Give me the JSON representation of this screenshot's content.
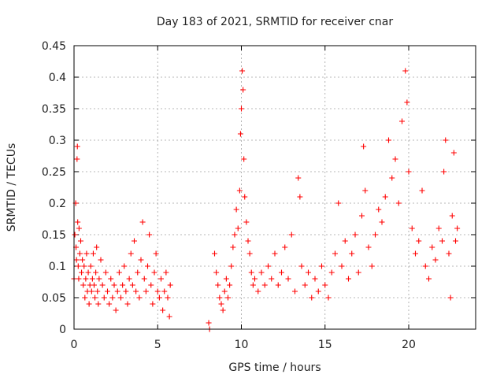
{
  "chart_data": {
    "type": "scatter",
    "title": "Day 183 of 2021, SRMTID for receiver cnar",
    "xlabel": "GPS time / hours",
    "ylabel": "SRMTID / TECUs",
    "xlim": [
      0,
      24
    ],
    "ylim": [
      0,
      0.45
    ],
    "xticks": [
      0,
      5,
      10,
      15,
      20
    ],
    "xtick_labels": [
      "0",
      "5",
      "10",
      "15",
      "20"
    ],
    "yticks": [
      0,
      0.05,
      0.1,
      0.15,
      0.2,
      0.25,
      0.3,
      0.35,
      0.4,
      0.45
    ],
    "ytick_labels": [
      "0",
      "0.05",
      "0.1",
      "0.15",
      "0.2",
      "0.25",
      "0.3",
      "0.35",
      "0.4",
      "0.45"
    ],
    "grid": true,
    "marker": "+",
    "color": "#ff0000",
    "series": [
      {
        "name": "SRMTID",
        "points": [
          [
            0.0,
            0.08
          ],
          [
            0.05,
            0.15
          ],
          [
            0.1,
            0.2
          ],
          [
            0.12,
            0.13
          ],
          [
            0.15,
            0.11
          ],
          [
            0.18,
            0.27
          ],
          [
            0.2,
            0.29
          ],
          [
            0.22,
            0.17
          ],
          [
            0.25,
            0.1
          ],
          [
            0.28,
            0.08
          ],
          [
            0.3,
            0.16
          ],
          [
            0.35,
            0.12
          ],
          [
            0.4,
            0.14
          ],
          [
            0.45,
            0.09
          ],
          [
            0.5,
            0.11
          ],
          [
            0.55,
            0.07
          ],
          [
            0.6,
            0.1
          ],
          [
            0.65,
            0.05
          ],
          [
            0.7,
            0.08
          ],
          [
            0.75,
            0.12
          ],
          [
            0.8,
            0.06
          ],
          [
            0.85,
            0.09
          ],
          [
            0.9,
            0.04
          ],
          [
            0.95,
            0.07
          ],
          [
            1.0,
            0.1
          ],
          [
            1.05,
            0.06
          ],
          [
            1.1,
            0.08
          ],
          [
            1.15,
            0.12
          ],
          [
            1.2,
            0.07
          ],
          [
            1.25,
            0.05
          ],
          [
            1.3,
            0.09
          ],
          [
            1.35,
            0.13
          ],
          [
            1.4,
            0.06
          ],
          [
            1.45,
            0.04
          ],
          [
            1.5,
            0.08
          ],
          [
            1.6,
            0.11
          ],
          [
            1.7,
            0.07
          ],
          [
            1.8,
            0.05
          ],
          [
            1.9,
            0.09
          ],
          [
            2.0,
            0.06
          ],
          [
            2.1,
            0.04
          ],
          [
            2.2,
            0.08
          ],
          [
            2.3,
            0.05
          ],
          [
            2.4,
            0.07
          ],
          [
            2.5,
            0.03
          ],
          [
            2.6,
            0.06
          ],
          [
            2.7,
            0.09
          ],
          [
            2.8,
            0.05
          ],
          [
            2.9,
            0.07
          ],
          [
            3.0,
            0.1
          ],
          [
            3.1,
            0.06
          ],
          [
            3.2,
            0.04
          ],
          [
            3.3,
            0.08
          ],
          [
            3.4,
            0.12
          ],
          [
            3.5,
            0.07
          ],
          [
            3.6,
            0.14
          ],
          [
            3.7,
            0.06
          ],
          [
            3.8,
            0.09
          ],
          [
            3.9,
            0.05
          ],
          [
            4.0,
            0.11
          ],
          [
            4.1,
            0.17
          ],
          [
            4.2,
            0.08
          ],
          [
            4.3,
            0.06
          ],
          [
            4.4,
            0.1
          ],
          [
            4.5,
            0.15
          ],
          [
            4.6,
            0.07
          ],
          [
            4.7,
            0.04
          ],
          [
            4.8,
            0.09
          ],
          [
            4.9,
            0.12
          ],
          [
            5.0,
            0.06
          ],
          [
            5.1,
            0.05
          ],
          [
            5.2,
            0.08
          ],
          [
            5.3,
            0.03
          ],
          [
            5.4,
            0.06
          ],
          [
            5.5,
            0.09
          ],
          [
            5.6,
            0.05
          ],
          [
            5.7,
            0.02
          ],
          [
            5.75,
            0.07
          ],
          [
            8.05,
            0.01
          ],
          [
            8.1,
            0.0
          ],
          [
            8.4,
            0.12
          ],
          [
            8.5,
            0.09
          ],
          [
            8.6,
            0.07
          ],
          [
            8.7,
            0.05
          ],
          [
            8.8,
            0.04
          ],
          [
            8.9,
            0.03
          ],
          [
            9.0,
            0.06
          ],
          [
            9.1,
            0.08
          ],
          [
            9.2,
            0.05
          ],
          [
            9.3,
            0.07
          ],
          [
            9.4,
            0.1
          ],
          [
            9.5,
            0.13
          ],
          [
            9.6,
            0.15
          ],
          [
            9.7,
            0.19
          ],
          [
            9.8,
            0.16
          ],
          [
            9.9,
            0.22
          ],
          [
            9.95,
            0.31
          ],
          [
            10.0,
            0.35
          ],
          [
            10.05,
            0.41
          ],
          [
            10.1,
            0.38
          ],
          [
            10.15,
            0.27
          ],
          [
            10.2,
            0.21
          ],
          [
            10.3,
            0.17
          ],
          [
            10.4,
            0.14
          ],
          [
            10.5,
            0.12
          ],
          [
            10.6,
            0.09
          ],
          [
            10.7,
            0.07
          ],
          [
            10.8,
            0.08
          ],
          [
            11.0,
            0.06
          ],
          [
            11.2,
            0.09
          ],
          [
            11.4,
            0.07
          ],
          [
            11.6,
            0.1
          ],
          [
            11.8,
            0.08
          ],
          [
            12.0,
            0.12
          ],
          [
            12.2,
            0.07
          ],
          [
            12.4,
            0.09
          ],
          [
            12.6,
            0.13
          ],
          [
            12.8,
            0.08
          ],
          [
            13.0,
            0.15
          ],
          [
            13.2,
            0.06
          ],
          [
            13.4,
            0.24
          ],
          [
            13.5,
            0.21
          ],
          [
            13.6,
            0.1
          ],
          [
            13.8,
            0.07
          ],
          [
            14.0,
            0.09
          ],
          [
            14.2,
            0.05
          ],
          [
            14.4,
            0.08
          ],
          [
            14.6,
            0.06
          ],
          [
            14.8,
            0.1
          ],
          [
            15.0,
            0.07
          ],
          [
            15.2,
            0.05
          ],
          [
            15.4,
            0.09
          ],
          [
            15.6,
            0.12
          ],
          [
            15.8,
            0.2
          ],
          [
            16.0,
            0.1
          ],
          [
            16.2,
            0.14
          ],
          [
            16.4,
            0.08
          ],
          [
            16.6,
            0.12
          ],
          [
            16.8,
            0.15
          ],
          [
            17.0,
            0.09
          ],
          [
            17.2,
            0.18
          ],
          [
            17.3,
            0.29
          ],
          [
            17.4,
            0.22
          ],
          [
            17.6,
            0.13
          ],
          [
            17.8,
            0.1
          ],
          [
            18.0,
            0.15
          ],
          [
            18.2,
            0.19
          ],
          [
            18.4,
            0.17
          ],
          [
            18.6,
            0.21
          ],
          [
            18.8,
            0.3
          ],
          [
            19.0,
            0.24
          ],
          [
            19.2,
            0.27
          ],
          [
            19.4,
            0.2
          ],
          [
            19.6,
            0.33
          ],
          [
            19.8,
            0.41
          ],
          [
            19.9,
            0.36
          ],
          [
            20.0,
            0.25
          ],
          [
            20.2,
            0.16
          ],
          [
            20.4,
            0.12
          ],
          [
            20.6,
            0.14
          ],
          [
            20.8,
            0.22
          ],
          [
            21.0,
            0.1
          ],
          [
            21.2,
            0.08
          ],
          [
            21.4,
            0.13
          ],
          [
            21.6,
            0.11
          ],
          [
            21.8,
            0.16
          ],
          [
            22.0,
            0.14
          ],
          [
            22.1,
            0.25
          ],
          [
            22.2,
            0.3
          ],
          [
            22.4,
            0.12
          ],
          [
            22.5,
            0.05
          ],
          [
            22.6,
            0.18
          ],
          [
            22.7,
            0.28
          ],
          [
            22.8,
            0.14
          ],
          [
            22.9,
            0.16
          ]
        ]
      }
    ]
  }
}
